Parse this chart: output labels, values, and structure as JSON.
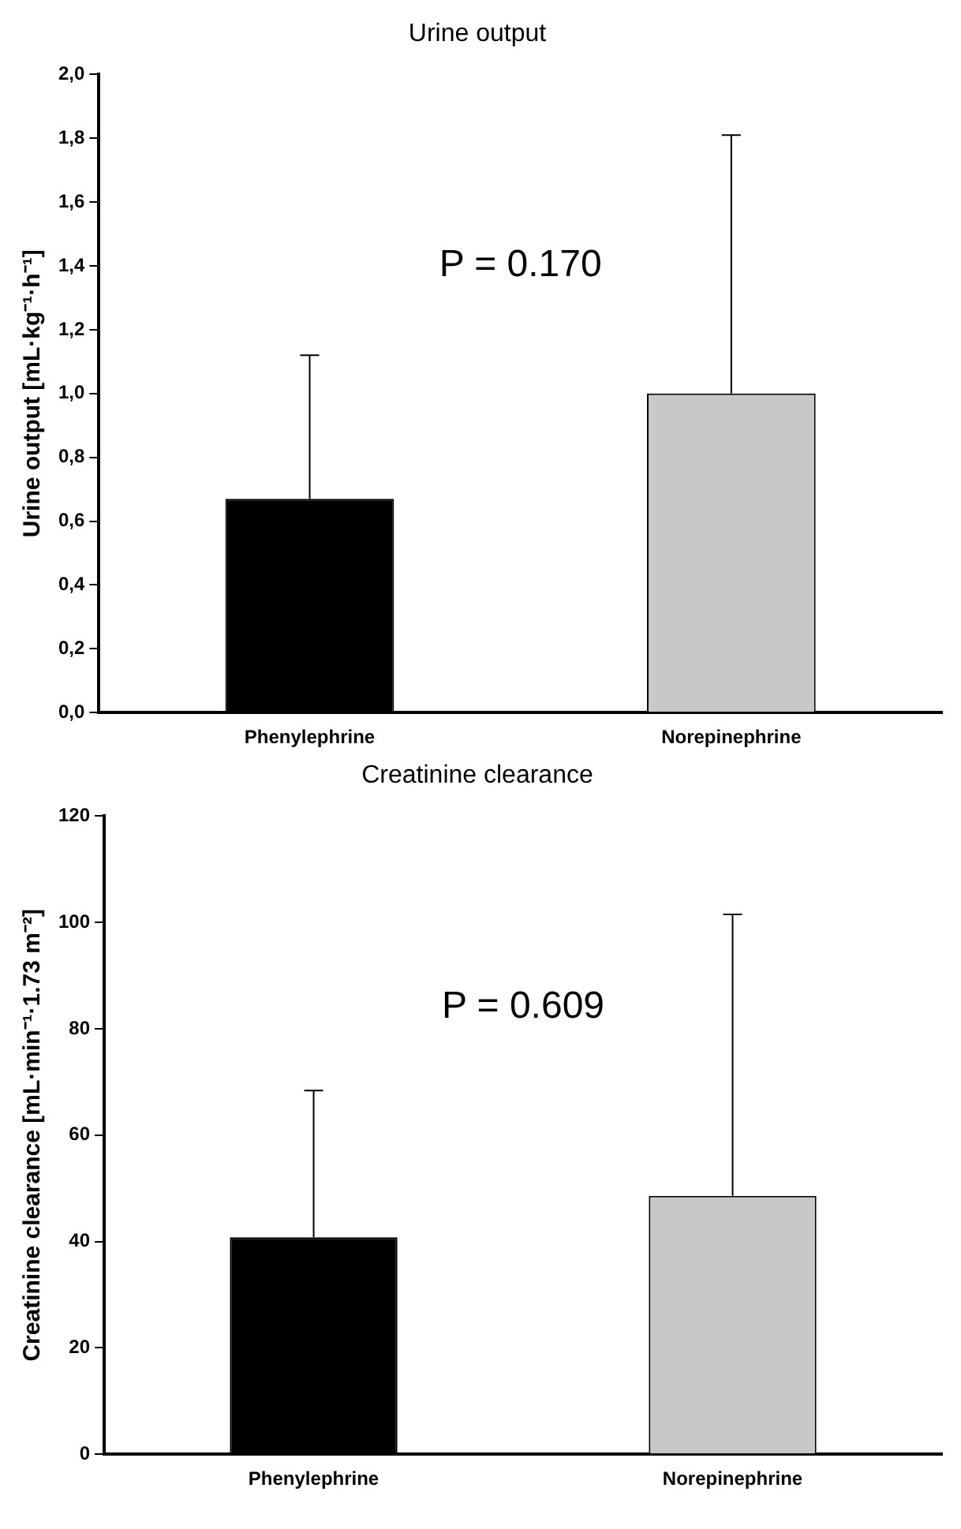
{
  "chart_data": [
    {
      "type": "bar",
      "title": "Urine output",
      "ylabel": "Urine output [mL·kg⁻¹·h⁻¹]",
      "categories": [
        "Phenylephrine",
        "Norepinephrine"
      ],
      "values": [
        0.67,
        1.0
      ],
      "colors": [
        "#000000",
        "#c8c8c8"
      ],
      "errors": [
        [
          0.67,
          1.12
        ],
        [
          1.0,
          1.81
        ]
      ],
      "ylim": [
        0,
        2
      ],
      "yticks": [
        {
          "value": 0,
          "label": "0,0"
        },
        {
          "value": 0.2,
          "label": "0,2"
        },
        {
          "value": 0.4,
          "label": "0,4"
        },
        {
          "value": 0.6,
          "label": "0,6"
        },
        {
          "value": 0.8,
          "label": "0,8"
        },
        {
          "value": 1,
          "label": "1,0"
        },
        {
          "value": 1.2,
          "label": "1,2"
        },
        {
          "value": 1.4,
          "label": "1,4"
        },
        {
          "value": 1.6,
          "label": "1,6"
        },
        {
          "value": 1.8,
          "label": "1,8"
        },
        {
          "value": 2,
          "label": "2,0"
        }
      ],
      "annotations": [
        "P = 0.170"
      ],
      "grid": false,
      "legend": false
    },
    {
      "type": "bar",
      "title": "Creatinine clearance",
      "ylabel": "Creatinine clearance [mL·min⁻¹·1.73 m⁻²]",
      "categories": [
        "Phenylephrine",
        "Norepinephrine"
      ],
      "values": [
        40.8,
        48.6
      ],
      "colors": [
        "#000000",
        "#c8c8c8"
      ],
      "errors": [
        [
          40.8,
          68.4
        ],
        [
          48.6,
          101.5
        ]
      ],
      "ylim": [
        0,
        120
      ],
      "yticks": [
        0,
        20,
        40,
        60,
        80,
        100,
        120
      ],
      "annotations": [
        "P = 0.609"
      ],
      "grid": false,
      "legend": false
    }
  ]
}
